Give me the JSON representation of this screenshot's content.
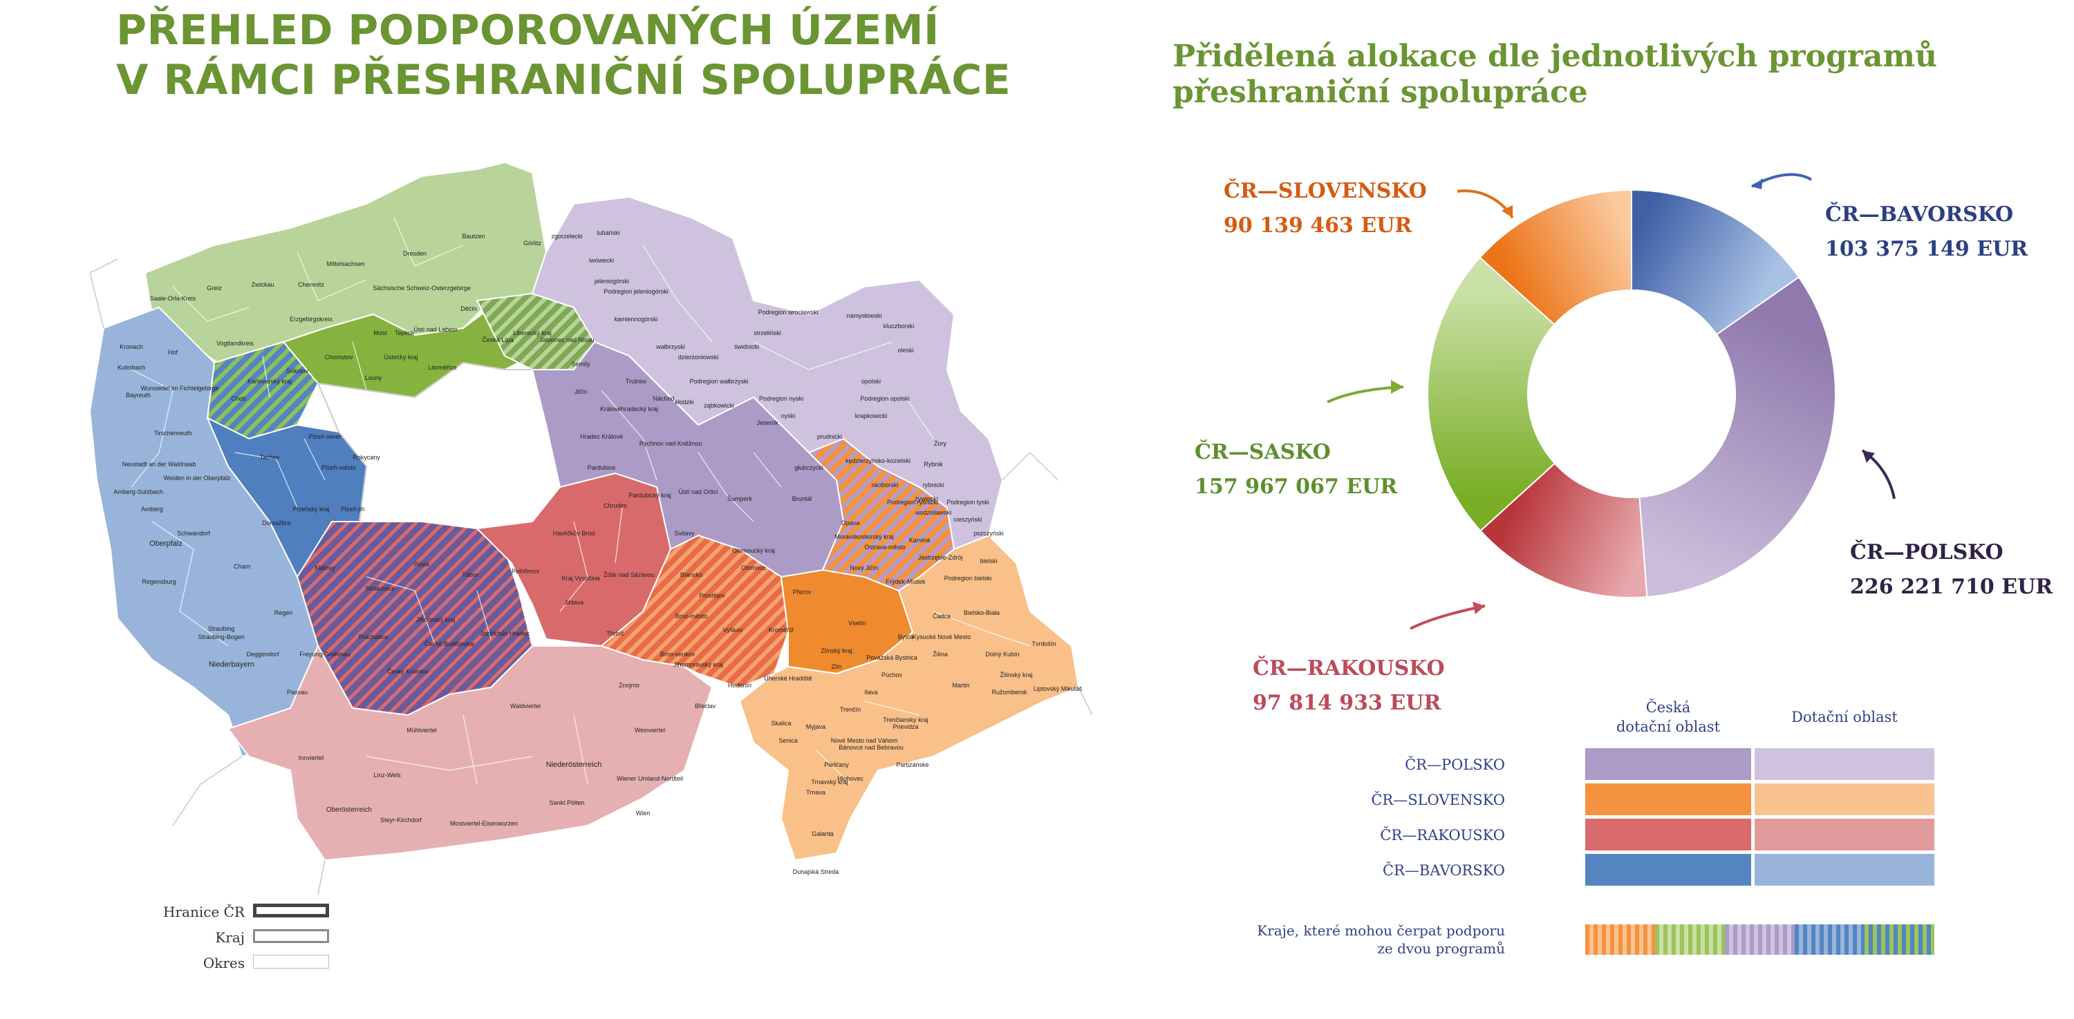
{
  "title": {
    "line1": "PŘEHLED PODPOROVANÝCH ÚZEMÍ",
    "line2": "V RÁMCI PŘESHRANIČNÍ SPOLUPRÁCE"
  },
  "chart_title": {
    "line1": "Přidělená alokace dle jednotlivých programů",
    "line2": "přeshraniční spolupráce"
  },
  "map": {
    "region_labels": [
      "Bautzen",
      "Görlitz",
      "Dresden",
      "Mittelsachsen",
      "Chemnitz",
      "Zwickau",
      "Greiz",
      "Saale-Orla-Kreis",
      "Sächsische Schweiz-Osterzgebirge",
      "Erzgebirgskreis",
      "Vogtlandkreis",
      "Děčín",
      "Liberecký kraj",
      "Česká Lípa",
      "Jablonec nad Nisou",
      "Semily",
      "Ústí nad Labem",
      "Most",
      "Teplice",
      "Ústecký kraj",
      "Litoměřice",
      "Chomutov",
      "Louny",
      "Karlovarský kraj",
      "Sokolov",
      "Cheb",
      "Kronach",
      "Hof",
      "Kulmbach",
      "Bayreuth",
      "Wunsiedel im Fichtelgebirge",
      "Tirschenreuth",
      "Neustadt an der Waldnaab",
      "Weiden in der Oberpfalz",
      "Amberg-Sulzbach",
      "Amberg",
      "Schwandorf",
      "Oberpfalz",
      "Cham",
      "Regensburg",
      "Straubing-Bogen",
      "Straubing",
      "Deggendorf",
      "Regen",
      "Freyung-Grafenau",
      "Passau",
      "Niederbayern",
      "Plzeň-sever",
      "Rokycany",
      "Plzeň-město",
      "Plzeňský kraj",
      "Plzeň-jih",
      "Tachov",
      "Domažlice",
      "Klatovy",
      "Strakonice",
      "Písek",
      "Tábor",
      "Jihočeský kraj",
      "Jindřichův Hradec",
      "České Budějovice",
      "Prachatice",
      "Český Krumlov",
      "Havlíčkův Brod",
      "Pelhřimov",
      "Kraj Vysočina",
      "Žďár nad Sázavou",
      "Jihlava",
      "Třebíč",
      "Blansko",
      "Brno-město",
      "Brno-venkov",
      "Vyškov",
      "Jihomoravský kraj",
      "Znojmo",
      "Hodonín",
      "Břeclav",
      "Kroměříž",
      "Zlínský kraj",
      "Zlín",
      "Vsetín",
      "Uherské Hradiště",
      "Jičín",
      "Královéhradecký kraj",
      "Trutnov",
      "Náchod",
      "Rychnov nad Kněžnou",
      "Hradec Králové",
      "Pardubice",
      "Chrudim",
      "Pardubický kraj",
      "Ústí nad Orlicí",
      "Svitavy",
      "Šumperk",
      "Jeseník",
      "Olomoucký kraj",
      "Olomouc",
      "Prostějov",
      "Přerov",
      "Bruntál",
      "Opava",
      "Moravskoslezský kraj",
      "Ostrava-město",
      "Karviná",
      "Nový Jičín",
      "Frýdek-Místek",
      "Podregion jeleniogórski",
      "Podregion wrocławski",
      "Podregion wałbrzyski",
      "Podregion nyski",
      "Podregion opolski",
      "Podregion rybnicki",
      "Podregion tyski",
      "Podregion bielski",
      "zgorzelecki",
      "lubański",
      "lwówecki",
      "jeleniogórski",
      "kamiennogórski",
      "wałbrzyski",
      "kłodzki",
      "ząbkowicki",
      "dzierżoniowski",
      "świdnicki",
      "strzeliński",
      "nyski",
      "opolski",
      "namysłowski",
      "kluczborski",
      "oleski",
      "prudnicki",
      "głubczycki",
      "krapkowicki",
      "kędzierzyńsko-kozielski",
      "raciborski",
      "rybnicki",
      "wodzisławski",
      "Jastrzębie-Zdrój",
      "cieszyński",
      "pszczyński",
      "bielski",
      "Bielsko-Biała",
      "żywiecki",
      "Żory",
      "Rybnik",
      "Čadca",
      "Kysucké Nové Mesto",
      "Bytča",
      "Tvrdošín",
      "Dolný Kubín",
      "Žilina",
      "Žilinský kraj",
      "Ružomberok",
      "Martin",
      "Liptovský Mikuláš",
      "Považská Bystrica",
      "Púchov",
      "Trenčín",
      "Ilava",
      "Prievidza",
      "Trenčiansky kraj",
      "Nové Mesto nad Váhom",
      "Bánovce nad Bebravou",
      "Partizánske",
      "Myjava",
      "Senica",
      "Skalica",
      "Piešťany",
      "Trnavský kraj",
      "Trnava",
      "Hlohovec",
      "Galanta",
      "Dunajská Streda",
      "Mühlviertel",
      "Waldviertel",
      "Weinviertel",
      "Niederösterreich",
      "Innviertel",
      "Linz-Wels",
      "Oberösterreich",
      "Wiener Umland-Nordteil",
      "Wien",
      "Sankt Pölten",
      "Steyr-Kirchdorf",
      "Mostviertel-Eisenwurzen"
    ],
    "legend": [
      {
        "label": "Hranice ČR",
        "style": "thick-border"
      },
      {
        "label": "Kraj",
        "style": "medium-border"
      },
      {
        "label": "Okres",
        "style": "thin-border"
      }
    ]
  },
  "chart_data": {
    "type": "pie",
    "variant": "donut",
    "unit": "EUR",
    "slices": [
      {
        "name": "ČR—BAVORSKO",
        "value": 103375149,
        "display": "103 375 149  EUR",
        "color_from": "#3f5fa6",
        "color_to": "#a9c2e4",
        "text_color": "#2c3f83"
      },
      {
        "name": "ČR—POLSKO",
        "value": 226221710,
        "display": "226 221 710  EUR",
        "color_from": "#8f79ad",
        "color_to": "#cbbcdb",
        "text_color": "#2f2247"
      },
      {
        "name": "ČR—RAKOUSKO",
        "value": 97814933,
        "display": "97 814 933  EUR",
        "color_from": "#e6a8ac",
        "color_to": "#b8363b",
        "text_color": "#bd4a59"
      },
      {
        "name": "ČR—SASKO",
        "value": 157967067,
        "display": "157 967 067  EUR",
        "color_from": "#79ad25",
        "color_to": "#c9e0a6",
        "text_color": "#5e8f2e"
      },
      {
        "name": "ČR—SLOVENSKO",
        "value": 90139463,
        "display": "90 139 463  EUR",
        "color_from": "#ec7418",
        "color_to": "#fac99e",
        "text_color": "#d55b12"
      }
    ]
  },
  "color_legend": {
    "col1": {
      "line1": "Česká",
      "line2": "dotační oblast"
    },
    "col2": "Dotační oblast",
    "rows": [
      {
        "label": "ČR—POLSKO",
        "cz": "#ab9bc6",
        "area": "#cfc2df"
      },
      {
        "label": "ČR—SLOVENSKO",
        "cz": "#f4923f",
        "area": "#f9c38f"
      },
      {
        "label": "ČR—RAKOUSKO",
        "cz": "#d96a6b",
        "area": "#e19a9c"
      },
      {
        "label": "ČR—BAVORSKO",
        "cz": "#5485c1",
        "area": "#98b4da"
      }
    ],
    "dual_label": {
      "line1": "Kraje, které mohou čerpat podporu",
      "line2": "ze dvou programů"
    },
    "dual_colors": [
      "#f4923f",
      "#9cc45b",
      "#ab9bc6",
      "#5485c1",
      "#d96a6b"
    ]
  }
}
